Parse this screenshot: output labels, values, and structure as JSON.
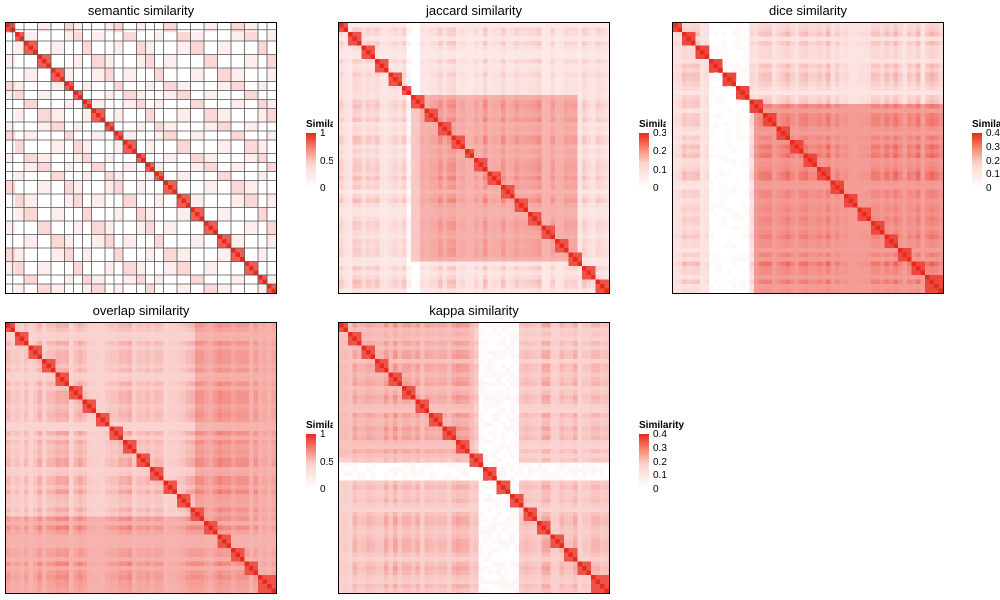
{
  "chart_data": [
    {
      "type": "heatmap",
      "title": "semantic similarity",
      "legend": {
        "title": "Similarity",
        "ticks": [
          "1",
          "0.5",
          "0"
        ],
        "max": 1
      },
      "n": 120,
      "pattern": "semantic",
      "colors": {
        "low": "#ffffff",
        "high": "#e8291c"
      }
    },
    {
      "type": "heatmap",
      "title": "jaccard similarity",
      "legend": {
        "title": "Similarity",
        "ticks": [
          "0.3",
          "0.2",
          "0.1",
          "0"
        ],
        "max": 0.33
      },
      "n": 120,
      "pattern": "jaccard",
      "colors": {
        "low": "#ffffff",
        "high": "#e8291c"
      }
    },
    {
      "type": "heatmap",
      "title": "dice similarity",
      "legend": {
        "title": "Similarity",
        "ticks": [
          "0.4",
          "0.3",
          "0.2",
          "0.1",
          "0"
        ],
        "max": 0.43
      },
      "n": 120,
      "pattern": "dice",
      "colors": {
        "low": "#ffffff",
        "high": "#e8291c"
      }
    },
    {
      "type": "heatmap",
      "title": "overlap similarity",
      "legend": {
        "title": "Similarity",
        "ticks": [
          "1",
          "0.5",
          "0"
        ],
        "max": 1
      },
      "n": 120,
      "pattern": "overlap",
      "colors": {
        "low": "#ffffff",
        "high": "#e8291c"
      }
    },
    {
      "type": "heatmap",
      "title": "kappa similarity",
      "legend": {
        "title": "Similarity",
        "ticks": [
          "0.4",
          "0.3",
          "0.2",
          "0.1",
          "0"
        ],
        "max": 0.43
      },
      "n": 120,
      "pattern": "kappa",
      "colors": {
        "low": "#ffffff",
        "high": "#e8291c"
      }
    }
  ]
}
